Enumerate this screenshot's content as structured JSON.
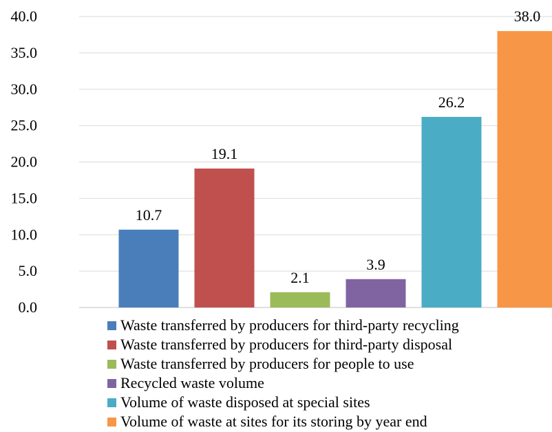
{
  "chart_data": {
    "type": "bar",
    "title": "",
    "xlabel": "",
    "ylabel": "",
    "ylim": [
      0,
      40
    ],
    "y_ticks": [
      "0.0",
      "5.0",
      "10.0",
      "15.0",
      "20.0",
      "25.0",
      "30.0",
      "35.0",
      "40.0"
    ],
    "grid": true,
    "legend_position": "bottom",
    "categories": [
      "Waste transferred by producers for third-party recycling",
      "Waste transferred by producers for third-party disposal",
      "Waste transferred by producers for people to use",
      "Recycled waste volume",
      "Volume of waste disposed at special sites",
      "Volume of waste at sites for its storing by year end"
    ],
    "values": [
      10.7,
      19.1,
      2.1,
      3.9,
      26.2,
      38.0
    ],
    "data_labels": [
      "10.7",
      "19.1",
      "2.1",
      "3.9",
      "26.2",
      "38.0"
    ],
    "colors": [
      "#4a7ebb",
      "#c0504d",
      "#9bbb59",
      "#8064a2",
      "#4bacc6",
      "#f79646"
    ]
  }
}
